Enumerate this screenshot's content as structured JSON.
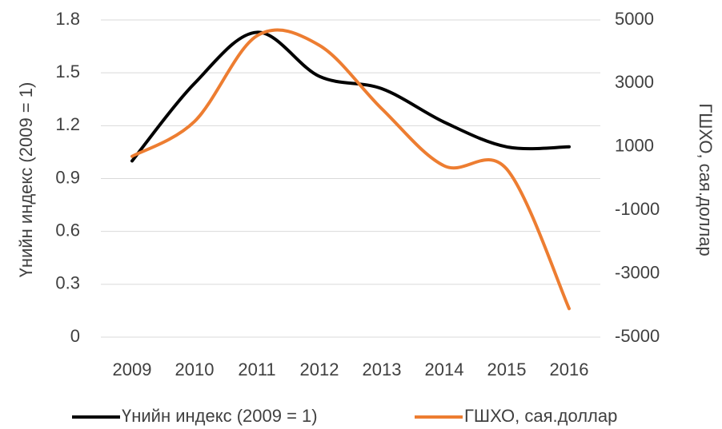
{
  "chart_data": {
    "type": "line",
    "categories": [
      "2009",
      "2010",
      "2011",
      "2012",
      "2013",
      "2014",
      "2015",
      "2016"
    ],
    "series": [
      {
        "name": "Үнийн индекс (2009 = 1)",
        "color": "#000000",
        "values": [
          1.0,
          1.44,
          1.73,
          1.48,
          1.41,
          1.22,
          1.08,
          1.08
        ]
      },
      {
        "name": "ГШХО, сая.доллар",
        "color": "#ed7d31",
        "axis": "y2",
        "values": [
          700,
          1800,
          4500,
          4200,
          2200,
          400,
          300,
          -4100
        ]
      }
    ],
    "ylabel": "Үнийн индекс (2009 = 1)",
    "y2label": "ГШХО, сая.доллар",
    "ylim": [
      0,
      1.8
    ],
    "yticks": [
      0,
      0.3,
      0.6,
      0.9,
      1.2,
      1.5,
      1.8
    ],
    "y2lim": [
      -5000,
      5000
    ],
    "y2ticks": [
      -5000,
      -3000,
      -1000,
      1000,
      3000,
      5000
    ],
    "grid": true,
    "legend": "bottom"
  }
}
